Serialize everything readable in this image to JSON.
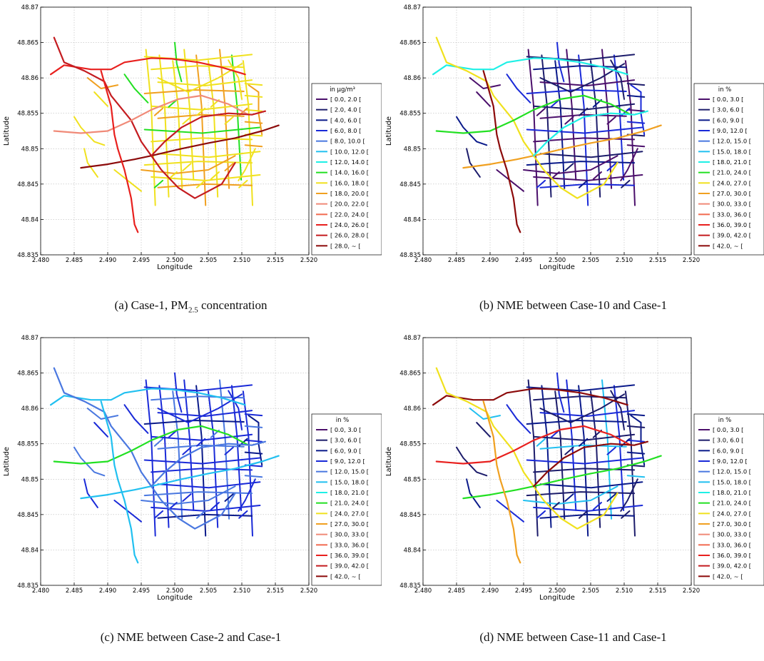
{
  "figure": {
    "captions": [
      {
        "label": "(a) Case-1, PM",
        "sub": "2.5",
        "rest": " concentration"
      },
      {
        "label": "(b) NME between Case-10 and Case-1",
        "sub": "",
        "rest": ""
      },
      {
        "label": "(c) NME between Case-2 and Case-1",
        "sub": "",
        "rest": ""
      },
      {
        "label": "(d) NME between Case-11 and Case-1",
        "sub": "",
        "rest": ""
      }
    ]
  },
  "chart_data": [
    {
      "type": "map",
      "xlabel": "Longitude",
      "ylabel": "Latitude",
      "xlim": [
        2.48,
        2.52
      ],
      "ylim": [
        48.835,
        48.87
      ],
      "xticks": [
        "2.480",
        "2.485",
        "2.490",
        "2.495",
        "2.500",
        "2.505",
        "2.510",
        "2.515",
        "2.520"
      ],
      "yticks": [
        "48.835",
        "48.84",
        "48.845",
        "48.85",
        "48.855",
        "48.86",
        "48.865",
        "48.87"
      ],
      "grid": true,
      "legend": {
        "placement": "right",
        "title": "in μg/m³",
        "entries": [
          {
            "label": "[ 0.0, 2.0 [",
            "color": "#4b0f6b"
          },
          {
            "label": "[ 2.0, 4.0 [",
            "color": "#1c1c6b"
          },
          {
            "label": "[ 4.0, 6.0 [",
            "color": "#0a1a8a"
          },
          {
            "label": "[ 6.0, 8.0 [",
            "color": "#1a2ad8"
          },
          {
            "label": "[ 8.0, 10.0 [",
            "color": "#4a78e0"
          },
          {
            "label": "[ 10.0, 12.0 [",
            "color": "#21c0f0"
          },
          {
            "label": "[ 12.0, 14.0 [",
            "color": "#1ef0e6"
          },
          {
            "label": "[ 14.0, 16.0 [",
            "color": "#22e022"
          },
          {
            "label": "[ 16.0, 18.0 [",
            "color": "#f0e11e"
          },
          {
            "label": "[ 18.0, 20.0 [",
            "color": "#f0a020"
          },
          {
            "label": "[ 20.0, 22.0 [",
            "color": "#f08a78"
          },
          {
            "label": "[ 22.0, 24.0 [",
            "color": "#f26a50"
          },
          {
            "label": "[ 24.0, 26.0 [",
            "color": "#e8201e"
          },
          {
            "label": "[ 26.0, 28.0 [",
            "color": "#c41c20"
          },
          {
            "label": "[ 28.0, ~ [",
            "color": "#8c0a0a"
          }
        ]
      },
      "palette": [
        "#f0e11e",
        "#f0e11e",
        "#f0e11e",
        "#f0e11e",
        "#f0a020",
        "#f0e11e",
        "#f0a020",
        "#22e022"
      ],
      "accent": [
        "#e8201e",
        "#c41c20",
        "#f08a78",
        "#8c0a0a"
      ]
    },
    {
      "type": "map",
      "xlabel": "Longitude",
      "ylabel": "Latitude",
      "xlim": [
        2.48,
        2.52
      ],
      "ylim": [
        48.835,
        48.87
      ],
      "xticks": [
        "2.480",
        "2.485",
        "2.490",
        "2.495",
        "2.500",
        "2.505",
        "2.510",
        "2.515",
        "2.520"
      ],
      "yticks": [
        "48.835",
        "48.84",
        "48.845",
        "48.85",
        "48.855",
        "48.86",
        "48.865",
        "48.87"
      ],
      "grid": true,
      "legend": {
        "placement": "right",
        "title": "in %",
        "entries": [
          {
            "label": "[ 0.0, 3.0 [",
            "color": "#4b0f6b"
          },
          {
            "label": "[ 3.0, 6.0 [",
            "color": "#1c1c6b"
          },
          {
            "label": "[ 6.0, 9.0 [",
            "color": "#0a1a8a"
          },
          {
            "label": "[ 9.0, 12.0 [",
            "color": "#1a2ad8"
          },
          {
            "label": "[ 12.0, 15.0 [",
            "color": "#4a78e0"
          },
          {
            "label": "[ 15.0, 18.0 [",
            "color": "#21c0f0"
          },
          {
            "label": "[ 18.0, 21.0 [",
            "color": "#1ef0e6"
          },
          {
            "label": "[ 21.0, 24.0 [",
            "color": "#22e022"
          },
          {
            "label": "[ 24.0, 27.0 [",
            "color": "#f0e11e"
          },
          {
            "label": "[ 27.0, 30.0 [",
            "color": "#f0a020"
          },
          {
            "label": "[ 30.0, 33.0 [",
            "color": "#f08a78"
          },
          {
            "label": "[ 33.0, 36.0 [",
            "color": "#f26a50"
          },
          {
            "label": "[ 36.0, 39.0 [",
            "color": "#e8201e"
          },
          {
            "label": "[ 39.0, 42.0 [",
            "color": "#c41c20"
          },
          {
            "label": "[ 42.0, ~ [",
            "color": "#8c0a0a"
          }
        ]
      },
      "palette": [
        "#4b0f6b",
        "#1c1c6b",
        "#0a1a8a",
        "#4b0f6b",
        "#1a2ad8",
        "#1c1c6b",
        "#4b0f6b",
        "#1a2ad8"
      ],
      "accent": [
        "#1ef0e6",
        "#f0e11e",
        "#22e022",
        "#f0a020",
        "#8c0a0a"
      ]
    },
    {
      "type": "map",
      "xlabel": "Longitude",
      "ylabel": "Latitude",
      "xlim": [
        2.48,
        2.52
      ],
      "ylim": [
        48.835,
        48.87
      ],
      "xticks": [
        "2.480",
        "2.485",
        "2.490",
        "2.495",
        "2.500",
        "2.505",
        "2.510",
        "2.515",
        "2.520"
      ],
      "yticks": [
        "48.835",
        "48.84",
        "48.845",
        "48.85",
        "48.855",
        "48.86",
        "48.865",
        "48.87"
      ],
      "grid": true,
      "legend": {
        "placement": "right",
        "title": "in %",
        "entries": [
          {
            "label": "[ 0.0, 3.0 [",
            "color": "#4b0f6b"
          },
          {
            "label": "[ 3.0, 6.0 [",
            "color": "#1c1c6b"
          },
          {
            "label": "[ 6.0, 9.0 [",
            "color": "#0a1a8a"
          },
          {
            "label": "[ 9.0, 12.0 [",
            "color": "#1a2ad8"
          },
          {
            "label": "[ 12.0, 15.0 [",
            "color": "#4a78e0"
          },
          {
            "label": "[ 15.0, 18.0 [",
            "color": "#21c0f0"
          },
          {
            "label": "[ 18.0, 21.0 [",
            "color": "#1ef0e6"
          },
          {
            "label": "[ 21.0, 24.0 [",
            "color": "#22e022"
          },
          {
            "label": "[ 24.0, 27.0 [",
            "color": "#f0e11e"
          },
          {
            "label": "[ 27.0, 30.0 [",
            "color": "#f0a020"
          },
          {
            "label": "[ 30.0, 33.0 [",
            "color": "#f08a78"
          },
          {
            "label": "[ 33.0, 36.0 [",
            "color": "#f26a50"
          },
          {
            "label": "[ 36.0, 39.0 [",
            "color": "#e8201e"
          },
          {
            "label": "[ 39.0, 42.0 [",
            "color": "#c41c20"
          },
          {
            "label": "[ 42.0, ~ [",
            "color": "#8c0a0a"
          }
        ]
      },
      "palette": [
        "#1a2ad8",
        "#1a2ad8",
        "#4a78e0",
        "#1a2ad8",
        "#0a1a8a",
        "#1a2ad8",
        "#4a78e0",
        "#1a2ad8"
      ],
      "accent": [
        "#21c0f0",
        "#4a78e0",
        "#22e022",
        "#21c0f0"
      ]
    },
    {
      "type": "map",
      "xlabel": "Longitude",
      "ylabel": "Latitude",
      "xlim": [
        2.48,
        2.52
      ],
      "ylim": [
        48.835,
        48.87
      ],
      "xticks": [
        "2.480",
        "2.485",
        "2.490",
        "2.495",
        "2.500",
        "2.505",
        "2.510",
        "2.515",
        "2.520"
      ],
      "yticks": [
        "48.835",
        "48.84",
        "48.845",
        "48.85",
        "48.855",
        "48.86",
        "48.865",
        "48.87"
      ],
      "grid": true,
      "legend": {
        "placement": "right",
        "title": "in %",
        "entries": [
          {
            "label": "[ 0.0, 3.0 [",
            "color": "#4b0f6b"
          },
          {
            "label": "[ 3.0, 6.0 [",
            "color": "#1c1c6b"
          },
          {
            "label": "[ 6.0, 9.0 [",
            "color": "#0a1a8a"
          },
          {
            "label": "[ 9.0, 12.0 [",
            "color": "#1a2ad8"
          },
          {
            "label": "[ 12.0, 15.0 [",
            "color": "#4a78e0"
          },
          {
            "label": "[ 15.0, 18.0 [",
            "color": "#21c0f0"
          },
          {
            "label": "[ 18.0, 21.0 [",
            "color": "#1ef0e6"
          },
          {
            "label": "[ 21.0, 24.0 [",
            "color": "#22e022"
          },
          {
            "label": "[ 24.0, 27.0 [",
            "color": "#f0e11e"
          },
          {
            "label": "[ 27.0, 30.0 [",
            "color": "#f0a020"
          },
          {
            "label": "[ 30.0, 33.0 [",
            "color": "#f08a78"
          },
          {
            "label": "[ 33.0, 36.0 [",
            "color": "#f26a50"
          },
          {
            "label": "[ 36.0, 39.0 [",
            "color": "#e8201e"
          },
          {
            "label": "[ 39.0, 42.0 [",
            "color": "#c41c20"
          },
          {
            "label": "[ 42.0, ~ [",
            "color": "#8c0a0a"
          }
        ]
      },
      "palette": [
        "#1c1c6b",
        "#0a1a8a",
        "#1c1c6b",
        "#1a2ad8",
        "#0a1a8a",
        "#1c1c6b",
        "#21c0f0",
        "#1a2ad8"
      ],
      "accent": [
        "#8c0a0a",
        "#f0e11e",
        "#e8201e",
        "#22e022",
        "#f0a020"
      ]
    }
  ]
}
